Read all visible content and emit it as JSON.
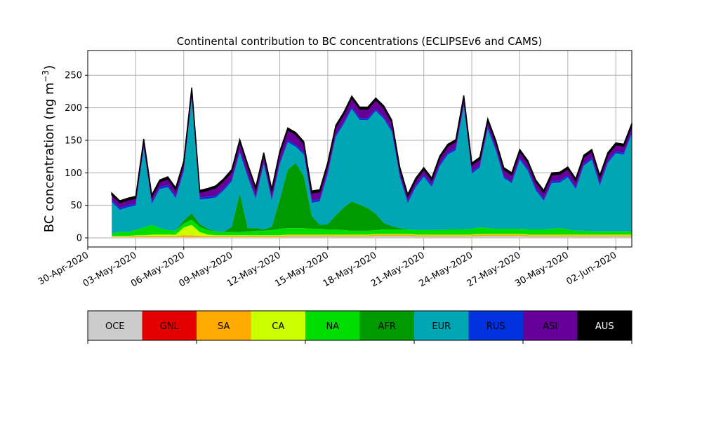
{
  "chart_data": {
    "type": "area",
    "stacked": true,
    "title": "Continental contribution to BC concentrations (ECLIPSEv6 and CAMS)",
    "ylabel": "BC concentration (ng m",
    "ylabel_sup": "−3",
    "ylabel_close": ")",
    "xlabel": "",
    "grid": true,
    "ylim": [
      -14,
      288
    ],
    "yticks": [
      0,
      50,
      100,
      150,
      200,
      250
    ],
    "x_start": "2020-05-01T12:00",
    "x_step_hours": 12,
    "xlim": [
      "2020-04-30T00:00",
      "2020-06-03T00:00"
    ],
    "xticks": [
      "2020-04-30",
      "2020-05-03",
      "2020-05-06",
      "2020-05-09",
      "2020-05-12",
      "2020-05-15",
      "2020-05-18",
      "2020-05-21",
      "2020-05-24",
      "2020-05-27",
      "2020-05-30",
      "2020-06-02"
    ],
    "xtick_labels": [
      "30-Apr-2020",
      "03-May-2020",
      "06-May-2020",
      "09-May-2020",
      "12-May-2020",
      "15-May-2020",
      "18-May-2020",
      "21-May-2020",
      "24-May-2020",
      "27-May-2020",
      "30-May-2020",
      "02-Jun-2020"
    ],
    "legend_placement": "below",
    "series": [
      {
        "name": "OCE",
        "color": "#cccccc",
        "values": [
          1,
          1,
          1,
          1,
          1,
          1,
          1,
          1,
          1,
          1,
          1,
          1,
          1,
          1,
          1,
          1,
          1,
          1,
          1,
          1,
          1,
          1,
          2,
          2,
          2,
          2,
          2,
          2,
          2,
          2,
          2,
          2,
          2,
          3,
          3,
          3,
          3,
          3,
          2,
          2,
          2,
          2,
          2,
          2,
          2,
          2,
          3,
          3,
          3,
          3,
          3,
          3,
          2,
          2,
          2,
          2,
          2,
          2,
          2,
          2,
          2,
          2,
          2,
          2,
          2,
          2
        ]
      },
      {
        "name": "GNL",
        "color": "#e50000",
        "values": [
          0,
          0,
          0,
          0,
          0,
          0,
          0,
          0,
          0,
          0,
          0,
          0,
          0,
          0,
          0,
          0,
          0,
          0,
          0,
          0,
          0,
          0,
          0,
          0,
          0,
          0,
          0,
          0,
          0,
          0,
          0,
          0,
          0,
          0,
          0,
          0,
          0,
          0,
          0,
          0,
          0,
          0,
          0,
          0,
          0,
          0,
          0,
          0,
          0,
          0,
          0,
          0,
          0,
          0,
          0,
          0,
          0,
          0,
          0,
          0,
          0,
          0,
          0,
          0,
          0,
          0
        ]
      },
      {
        "name": "SA",
        "color": "#ffaa00",
        "values": [
          1,
          1,
          1,
          2,
          2,
          2,
          2,
          2,
          2,
          3,
          3,
          2,
          2,
          2,
          2,
          2,
          2,
          2,
          2,
          2,
          2,
          2,
          2,
          2,
          2,
          2,
          2,
          2,
          2,
          2,
          2,
          2,
          2,
          2,
          2,
          2,
          2,
          2,
          2,
          2,
          2,
          2,
          2,
          2,
          2,
          2,
          2,
          2,
          2,
          2,
          2,
          2,
          2,
          2,
          2,
          2,
          2,
          2,
          2,
          2,
          2,
          2,
          2,
          2,
          2,
          2
        ]
      },
      {
        "name": "CA",
        "color": "#ccff00",
        "values": [
          1,
          1,
          1,
          1,
          1,
          2,
          2,
          2,
          2,
          12,
          16,
          6,
          2,
          1,
          1,
          1,
          1,
          1,
          1,
          1,
          1,
          1,
          1,
          1,
          1,
          1,
          1,
          1,
          1,
          1,
          1,
          1,
          1,
          1,
          1,
          1,
          1,
          1,
          1,
          1,
          1,
          1,
          1,
          1,
          1,
          1,
          1,
          1,
          1,
          1,
          1,
          1,
          1,
          1,
          1,
          1,
          1,
          1,
          1,
          1,
          1,
          1,
          1,
          1,
          1,
          1
        ]
      },
      {
        "name": "NA",
        "color": "#00dd00",
        "values": [
          4,
          6,
          6,
          8,
          12,
          15,
          10,
          7,
          6,
          6,
          8,
          8,
          7,
          6,
          5,
          5,
          5,
          6,
          7,
          7,
          8,
          10,
          10,
          10,
          10,
          9,
          9,
          8,
          8,
          7,
          6,
          6,
          6,
          6,
          7,
          7,
          7,
          7,
          7,
          7,
          7,
          7,
          8,
          8,
          8,
          9,
          10,
          9,
          8,
          8,
          8,
          8,
          8,
          8,
          8,
          9,
          10,
          8,
          6,
          6,
          5,
          5,
          5,
          5,
          5,
          5
        ]
      },
      {
        "name": "AFR",
        "color": "#009900",
        "values": [
          0,
          0,
          0,
          0,
          0,
          0,
          0,
          0,
          0,
          5,
          10,
          4,
          2,
          0,
          0,
          8,
          60,
          5,
          4,
          2,
          5,
          45,
          90,
          100,
          80,
          20,
          6,
          8,
          22,
          35,
          45,
          40,
          35,
          25,
          10,
          5,
          2,
          0,
          0,
          0,
          0,
          0,
          0,
          0,
          0,
          0,
          0,
          0,
          0,
          0,
          0,
          0,
          0,
          0,
          0,
          0,
          0,
          0,
          0,
          0,
          0,
          0,
          0,
          0,
          0,
          0
        ]
      },
      {
        "name": "EUR",
        "color": "#00a6b4",
        "values": [
          48,
          34,
          38,
          38,
          120,
          32,
          60,
          66,
          50,
          75,
          175,
          38,
          46,
          52,
          64,
          70,
          62,
          78,
          45,
          100,
          40,
          54,
          42,
          25,
          33,
          20,
          36,
          77,
          120,
          128,
          142,
          130,
          135,
          158,
          160,
          145,
          78,
          40,
          66,
          82,
          66,
          98,
          115,
          122,
          188,
          85,
          92,
          152,
          120,
          78,
          70,
          106,
          90,
          60,
          44,
          70,
          70,
          80,
          64,
          100,
          110,
          70,
          105,
          120,
          118,
          150
        ]
      },
      {
        "name": "RUS",
        "color": "#0033dd",
        "values": [
          3,
          3,
          3,
          3,
          3,
          3,
          3,
          3,
          3,
          3,
          3,
          3,
          3,
          3,
          3,
          3,
          3,
          3,
          3,
          3,
          3,
          3,
          3,
          3,
          3,
          3,
          3,
          3,
          3,
          3,
          3,
          3,
          3,
          3,
          3,
          3,
          3,
          3,
          3,
          3,
          3,
          3,
          3,
          3,
          3,
          3,
          3,
          3,
          3,
          3,
          3,
          3,
          3,
          3,
          3,
          3,
          3,
          3,
          3,
          3,
          3,
          3,
          3,
          3,
          3,
          3
        ]
      },
      {
        "name": "ASI",
        "color": "#660099",
        "values": [
          8,
          8,
          8,
          8,
          10,
          8,
          8,
          10,
          10,
          10,
          12,
          8,
          10,
          12,
          12,
          12,
          14,
          14,
          12,
          12,
          12,
          14,
          16,
          16,
          14,
          12,
          12,
          12,
          12,
          12,
          14,
          14,
          14,
          14,
          14,
          12,
          10,
          8,
          8,
          8,
          8,
          10,
          10,
          10,
          12,
          10,
          10,
          10,
          10,
          10,
          10,
          10,
          10,
          10,
          10,
          10,
          10,
          10,
          10,
          10,
          10,
          10,
          10,
          10,
          10,
          10
        ]
      },
      {
        "name": "AUS",
        "color": "#000000",
        "values": [
          3,
          3,
          3,
          3,
          3,
          3,
          3,
          3,
          3,
          3,
          3,
          3,
          3,
          3,
          3,
          3,
          3,
          3,
          3,
          3,
          3,
          3,
          3,
          3,
          3,
          3,
          3,
          3,
          3,
          3,
          3,
          3,
          3,
          3,
          3,
          3,
          3,
          3,
          3,
          3,
          3,
          3,
          3,
          3,
          3,
          3,
          3,
          3,
          3,
          3,
          3,
          3,
          3,
          3,
          3,
          3,
          3,
          3,
          3,
          3,
          3,
          3,
          3,
          3,
          3,
          3
        ]
      }
    ]
  }
}
